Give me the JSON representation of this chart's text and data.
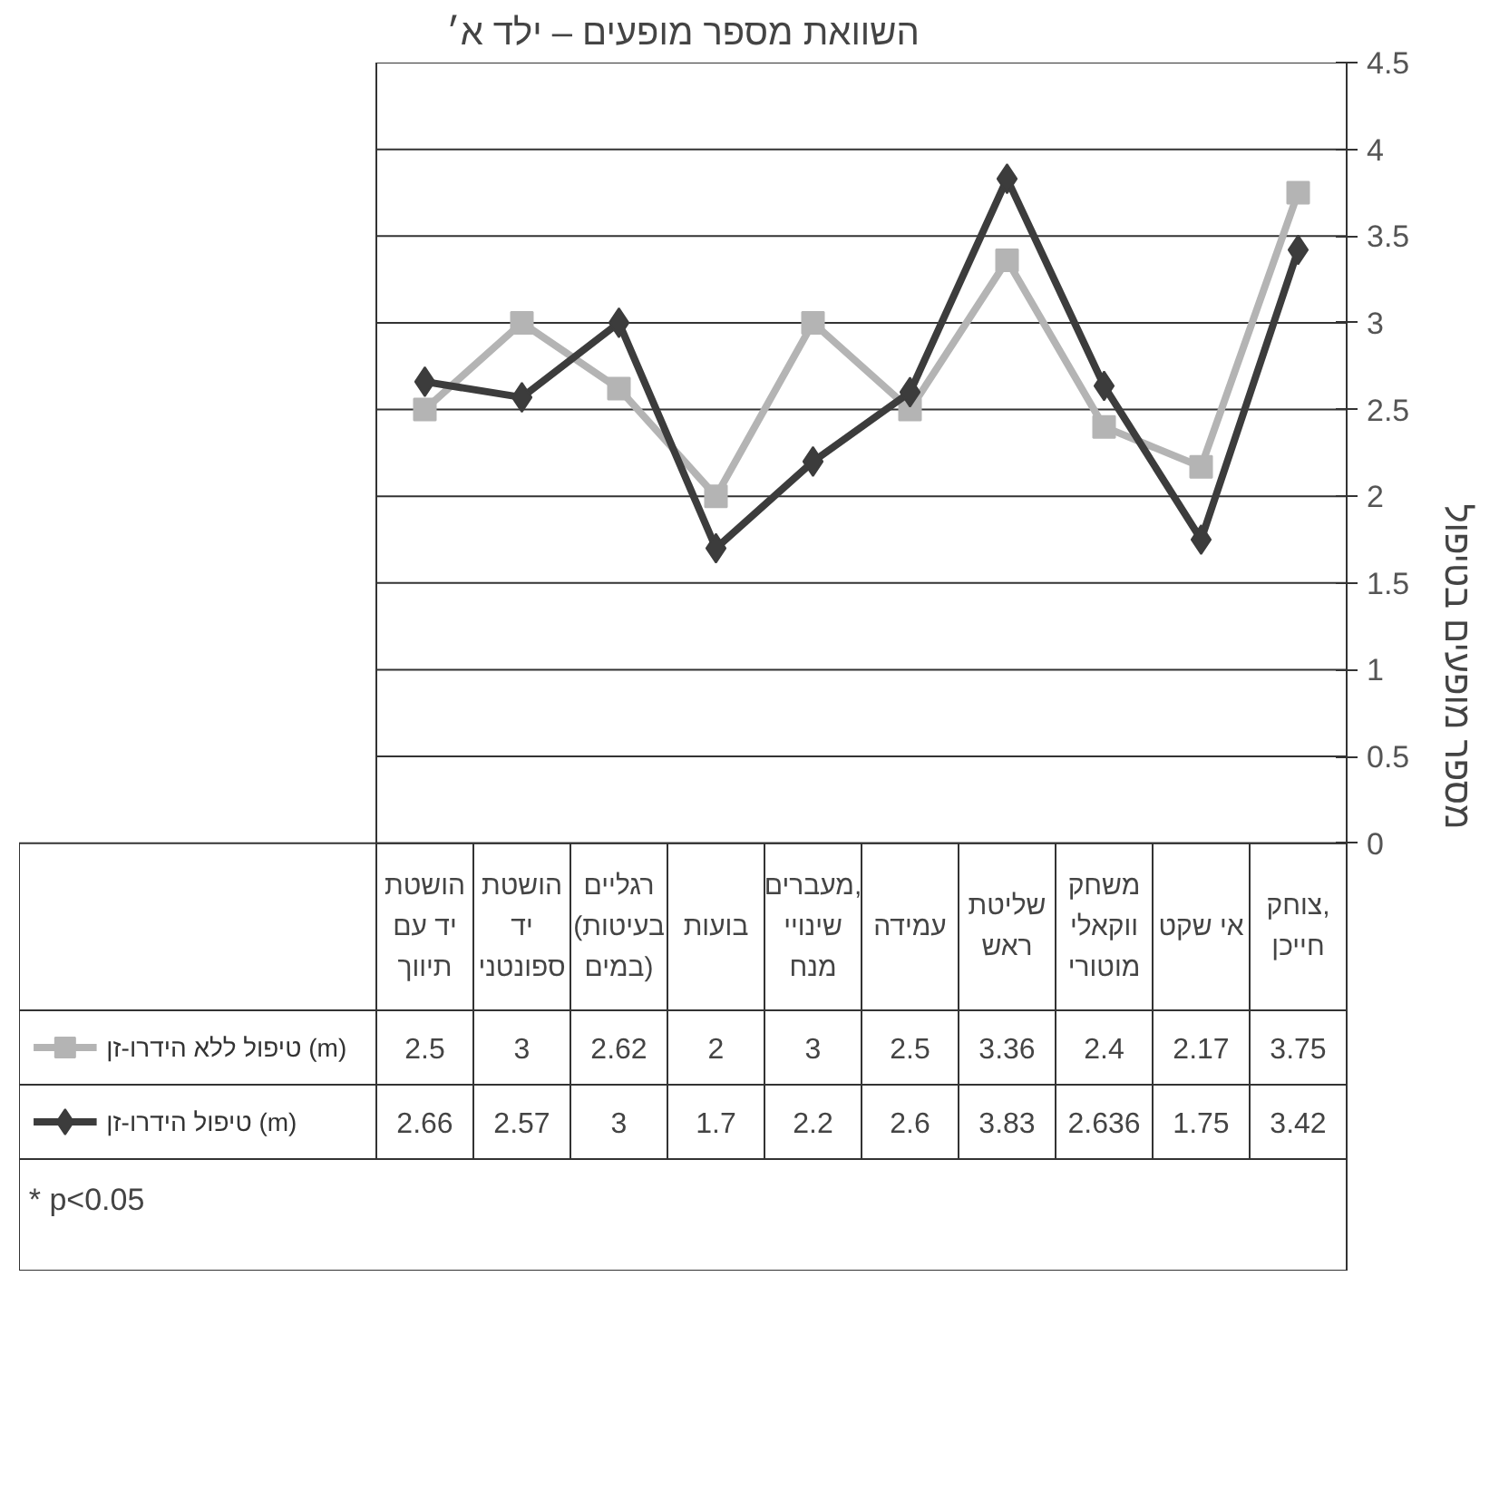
{
  "chart_data": {
    "type": "line",
    "title": "השוואת מספר מופעים – ילד א׳",
    "ylabel": "מספר מופעים בטיפול",
    "categories": [
      "הושטת יד עם תיווך",
      "הושטת יד ספונטני",
      "רגליים (בעיטות במים)",
      "בועות",
      "מעברים, שינויי מנח",
      "עמידה",
      "שליטת ראש",
      "משחק ווקאלי מוטורי",
      "אי שקט",
      "צוחק, חייכן"
    ],
    "series": [
      {
        "name": "טיפול ללא הידרו-זן (m)",
        "color": "#b4b4b4",
        "marker": "square",
        "values": [
          2.5,
          3,
          2.62,
          2,
          3,
          2.5,
          3.36,
          2.4,
          2.17,
          3.75
        ]
      },
      {
        "name": "טיפול הידרו-זן (m)",
        "color": "#3c3c3c",
        "marker": "diamond",
        "values": [
          2.66,
          2.57,
          3,
          1.7,
          2.2,
          2.6,
          3.83,
          2.636,
          1.75,
          3.42
        ]
      }
    ],
    "ylim": [
      0,
      4.5
    ],
    "yticks": [
      0,
      0.5,
      1,
      1.5,
      2,
      2.5,
      3,
      3.5,
      4,
      4.5
    ],
    "grid": "y",
    "legend": "bottom",
    "data_labels": true,
    "line_style": "solid",
    "annotations": [
      "* p<0.05"
    ]
  }
}
